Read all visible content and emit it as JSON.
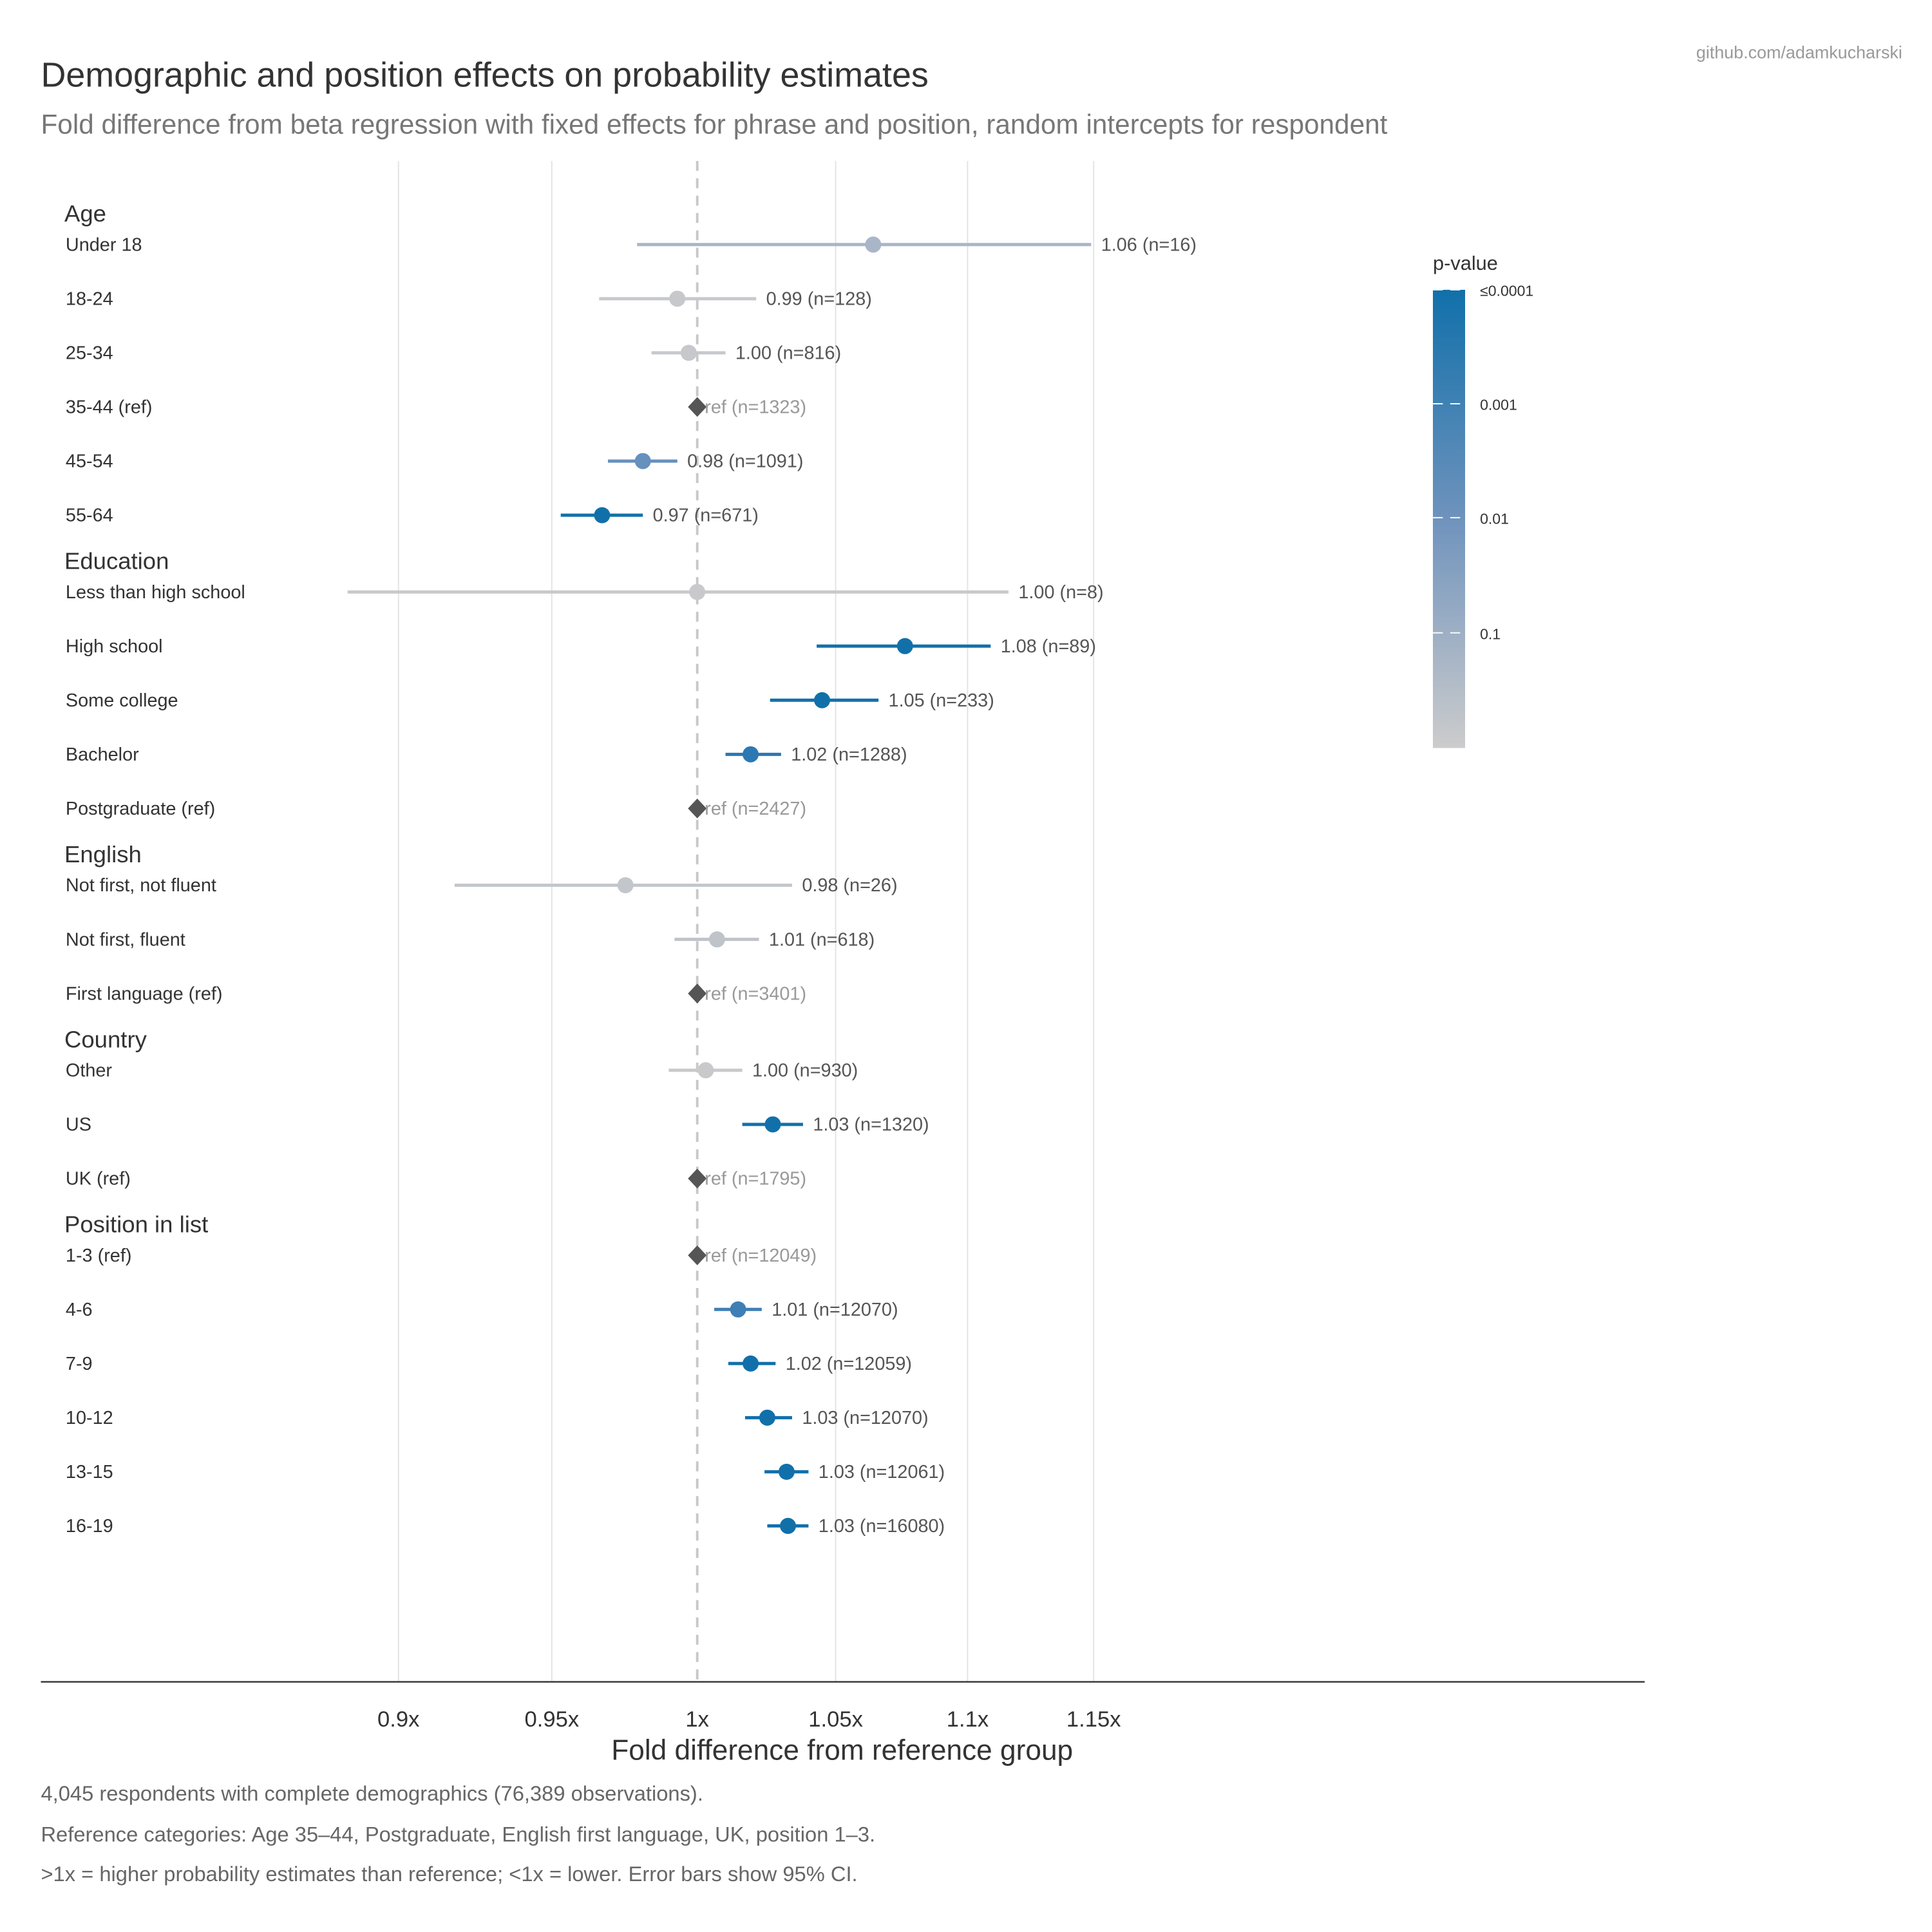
{
  "title": "Demographic and position effects on probability estimates",
  "subtitle": "Fold difference from beta regression with fixed effects for phrase and position, random intercepts for respondent",
  "credit": "github.com/adamkucharski",
  "footnotes": [
    "4,045 respondents with complete demographics (76,389 observations).",
    "Reference categories: Age 35–44, Postgraduate, English first language, UK, position 1–3.",
    ">1x = higher probability estimates than reference; <1x = lower. Error bars show 95% CI."
  ],
  "legend": {
    "title": "p-value",
    "labels": [
      "≤0.0001",
      "0.001",
      "0.01",
      "0.1"
    ],
    "colors": [
      "#1170aa",
      "#cccccc"
    ]
  },
  "chart_data": {
    "type": "forest",
    "xlabel": "Fold difference from reference group",
    "xscale": "log",
    "xlim": [
      0.85,
      1.25
    ],
    "xticks": [
      0.9,
      0.95,
      1,
      1.05,
      1.1,
      1.15
    ],
    "xtick_labels": [
      "0.9x",
      "0.95x",
      "1x",
      "1.05x",
      "1.1x",
      "1.15x"
    ],
    "reference_line": 1,
    "grid": true,
    "groups": [
      {
        "name": "Age",
        "rows": [
          {
            "label": "Under 18",
            "est": 1.064,
            "lo": 0.979,
            "hi": 1.149,
            "text": "1.06 (n=16)",
            "color": "#a9b6c8"
          },
          {
            "label": "18-24",
            "est": 0.993,
            "lo": 0.966,
            "hi": 1.021,
            "text": "0.99 (n=128)",
            "color": "#c6c8cc"
          },
          {
            "label": "25-34",
            "est": 0.997,
            "lo": 0.984,
            "hi": 1.01,
            "text": "1.00 (n=816)",
            "color": "#c6c8cc"
          },
          {
            "label": "35-44 (ref)",
            "ref": true,
            "text": "ref (n=1323)"
          },
          {
            "label": "45-54",
            "est": 0.981,
            "lo": 0.969,
            "hi": 0.993,
            "text": "0.98 (n=1091)",
            "color": "#6690bd"
          },
          {
            "label": "55-64",
            "est": 0.967,
            "lo": 0.953,
            "hi": 0.981,
            "text": "0.97 (n=671)",
            "color": "#1170aa"
          }
        ]
      },
      {
        "name": "Education",
        "rows": [
          {
            "label": "Less than high school",
            "est": 1.0,
            "lo": 0.884,
            "hi": 1.116,
            "text": "1.00 (n=8)",
            "color": "#c9c9cb"
          },
          {
            "label": "High school",
            "est": 1.076,
            "lo": 1.043,
            "hi": 1.109,
            "text": "1.08 (n=89)",
            "color": "#1170aa"
          },
          {
            "label": "Some college",
            "est": 1.045,
            "lo": 1.026,
            "hi": 1.066,
            "text": "1.05 (n=233)",
            "color": "#1170aa"
          },
          {
            "label": "Bachelor",
            "est": 1.019,
            "lo": 1.01,
            "hi": 1.03,
            "text": "1.02 (n=1288)",
            "color": "#2c78b3"
          },
          {
            "label": "Postgraduate (ref)",
            "ref": true,
            "text": "ref (n=2427)"
          }
        ]
      },
      {
        "name": "English",
        "rows": [
          {
            "label": "Not first, not fluent",
            "est": 0.975,
            "lo": 0.918,
            "hi": 1.034,
            "text": "0.98 (n=26)",
            "color": "#c3c6cb"
          },
          {
            "label": "Not first, fluent",
            "est": 1.007,
            "lo": 0.992,
            "hi": 1.022,
            "text": "1.01 (n=618)",
            "color": "#bfc3ca"
          },
          {
            "label": "First language (ref)",
            "ref": true,
            "text": "ref (n=3401)"
          }
        ]
      },
      {
        "name": "Country",
        "rows": [
          {
            "label": "Other",
            "est": 1.003,
            "lo": 0.99,
            "hi": 1.016,
            "text": "1.00 (n=930)",
            "color": "#c9c9cb"
          },
          {
            "label": "US",
            "est": 1.027,
            "lo": 1.016,
            "hi": 1.038,
            "text": "1.03 (n=1320)",
            "color": "#1170aa"
          },
          {
            "label": "UK (ref)",
            "ref": true,
            "text": "ref (n=1795)"
          }
        ]
      },
      {
        "name": "Position in list",
        "rows": [
          {
            "label": "1-3 (ref)",
            "ref": true,
            "text": "ref (n=12049)"
          },
          {
            "label": "4-6",
            "est": 1.0145,
            "lo": 1.006,
            "hi": 1.023,
            "text": "1.01 (n=12070)",
            "color": "#3f7fb6"
          },
          {
            "label": "7-9",
            "est": 1.019,
            "lo": 1.011,
            "hi": 1.028,
            "text": "1.02 (n=12059)",
            "color": "#1170aa"
          },
          {
            "label": "10-12",
            "est": 1.025,
            "lo": 1.017,
            "hi": 1.034,
            "text": "1.03 (n=12070)",
            "color": "#1170aa"
          },
          {
            "label": "13-15",
            "est": 1.032,
            "lo": 1.024,
            "hi": 1.04,
            "text": "1.03 (n=12061)",
            "color": "#1170aa"
          },
          {
            "label": "16-19",
            "est": 1.0325,
            "lo": 1.025,
            "hi": 1.04,
            "text": "1.03 (n=16080)",
            "color": "#1170aa"
          }
        ]
      }
    ]
  }
}
